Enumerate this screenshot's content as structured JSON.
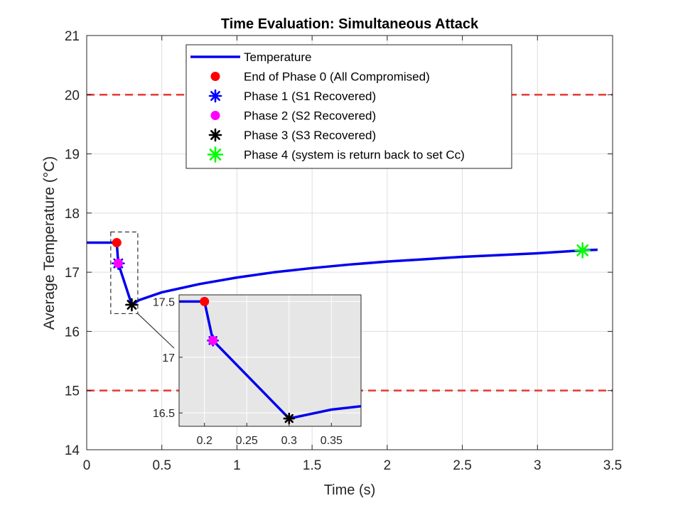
{
  "chart_data": {
    "type": "line",
    "title": "Time Evaluation: Simultaneous Attack",
    "xlabel": "Time (s)",
    "ylabel": "Average Temperature (°C)",
    "xlim": [
      0,
      3.5
    ],
    "ylim": [
      14,
      21
    ],
    "xticks": [
      0,
      0.5,
      1,
      1.5,
      2,
      2.5,
      3,
      3.5
    ],
    "xtick_labels": [
      "0",
      "0.5",
      "1",
      "1.5",
      "2",
      "2.5",
      "3",
      "3.5"
    ],
    "yticks": [
      14,
      15,
      16,
      17,
      18,
      19,
      20,
      21
    ],
    "ytick_labels": [
      "14",
      "15",
      "16",
      "17",
      "18",
      "19",
      "20",
      "21"
    ],
    "grid": true,
    "legend_position": "top-center",
    "series": [
      {
        "name": "Temperature",
        "color": "#0000ee",
        "x": [
          0,
          0.2,
          0.21,
          0.3,
          0.35,
          0.5,
          0.75,
          1.0,
          1.25,
          1.5,
          1.75,
          2.0,
          2.25,
          2.5,
          2.75,
          3.0,
          3.3,
          3.4
        ],
        "y": [
          17.5,
          17.5,
          17.15,
          16.45,
          16.53,
          16.66,
          16.8,
          16.91,
          17.0,
          17.07,
          17.13,
          17.18,
          17.22,
          17.26,
          17.29,
          17.32,
          17.37,
          17.38
        ]
      }
    ],
    "reference_lines": [
      {
        "y": 20,
        "color": "#e8413c",
        "style": "dashed"
      },
      {
        "y": 15,
        "color": "#e8413c",
        "style": "dashed"
      }
    ],
    "markers": [
      {
        "name": "End of Phase 0 (All Compromised)",
        "x": 0.2,
        "y": 17.5,
        "shape": "dot",
        "color": "#ff0000"
      },
      {
        "name": "Phase 1 (S1 Recovered)",
        "x": 0.21,
        "y": 17.15,
        "shape": "asterisk",
        "color": "#0000ff"
      },
      {
        "name": "Phase 2 (S2 Recovered)",
        "x": 0.21,
        "y": 17.15,
        "shape": "dot",
        "color": "#ff00ff"
      },
      {
        "name": "Phase 3 (S3 Recovered)",
        "x": 0.3,
        "y": 16.45,
        "shape": "asterisk",
        "color": "#000000"
      },
      {
        "name": "Phase 4 (system is return back to set Cc)",
        "x": 3.3,
        "y": 17.37,
        "shape": "asterisk",
        "color": "#00ff00"
      }
    ],
    "zoom_box": {
      "xlim": [
        0.16,
        0.34
      ],
      "ylim": [
        16.3,
        17.68
      ]
    },
    "inset": {
      "xlim": [
        0.17,
        0.385
      ],
      "ylim": [
        16.38,
        17.56
      ],
      "xticks": [
        0.2,
        0.25,
        0.3,
        0.35
      ],
      "xtick_labels": [
        "0.2",
        "0.25",
        "0.3",
        "0.35"
      ],
      "yticks": [
        16.5,
        17,
        17.5
      ],
      "ytick_labels": [
        "16.5",
        "17",
        "17.5"
      ],
      "background": "#e6e6e6"
    }
  }
}
